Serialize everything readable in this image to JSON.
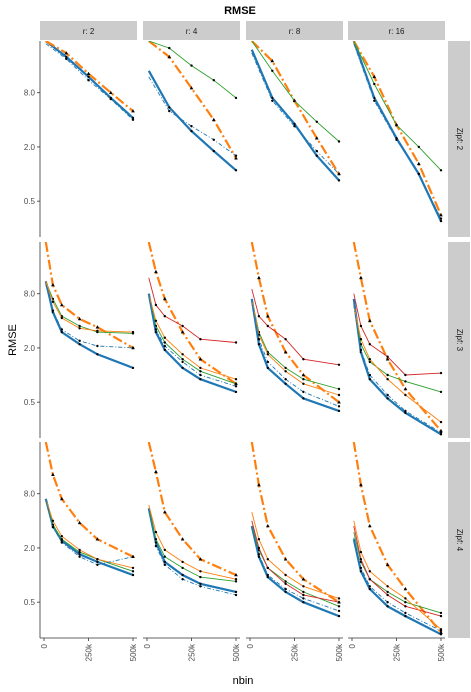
{
  "chart_data": {
    "type": "line",
    "title": "RMSE",
    "xlabel": "nbin",
    "ylabel": "RMSE",
    "y_scale": "log2",
    "ylim": [
      0.2,
      30
    ],
    "xlim": [
      0,
      500000
    ],
    "x_ticks": [
      0,
      250000,
      500000
    ],
    "x_tick_labels": [
      "0",
      "250k",
      "500k"
    ],
    "y_ticks": [
      0.5,
      2.0,
      8.0
    ],
    "y_tick_labels": [
      "0.5",
      "2.0",
      "8.0"
    ],
    "col_facet_labels": [
      "r: 2",
      "r: 4",
      "r: 8",
      "r: 16"
    ],
    "row_facet_labels": [
      "Zipf: 2",
      "Zipf: 3",
      "Zipf: 4"
    ],
    "x": [
      10000,
      50000,
      100000,
      200000,
      300000,
      500000
    ],
    "grid": false,
    "legend": "none",
    "panels": [
      {
        "r": 2,
        "zipf": 2,
        "series": [
          {
            "style": "thick-blue",
            "values": [
              30,
              20,
              12,
              7,
              4.2
            ]
          },
          {
            "style": "thick-orange-dash",
            "values": [
              30,
              22,
              13,
              8,
              5.0
            ]
          },
          {
            "style": "thin-dotted",
            "values": [
              28,
              19,
              11,
              6.8,
              4.0
            ]
          }
        ]
      },
      {
        "r": 4,
        "zipf": 2,
        "series": [
          {
            "style": "thick-blue",
            "values": [
              14,
              5.5,
              3.0,
              1.8,
              1.1
            ]
          },
          {
            "style": "thick-orange-dash",
            "values": [
              30,
              20,
              9,
              4,
              1.5
            ]
          },
          {
            "style": "thin-green",
            "values": [
              30,
              25,
              16,
              11,
              7
            ]
          },
          {
            "style": "thin-dotted",
            "values": [
              12,
              5.0,
              3.4,
              2.4,
              1.6
            ]
          }
        ]
      },
      {
        "r": 8,
        "zipf": 2,
        "series": [
          {
            "style": "thick-blue",
            "values": [
              24,
              7,
              3.6,
              1.6,
              0.85
            ]
          },
          {
            "style": "thick-orange-dash",
            "values": [
              30,
              18,
              6.5,
              2.5,
              1.0
            ]
          },
          {
            "style": "thin-green",
            "values": [
              30,
              14,
              6.5,
              3.8,
              2.3
            ]
          },
          {
            "style": "thin-dotted",
            "values": [
              22,
              6.5,
              3.4,
              1.8,
              1.0
            ]
          }
        ]
      },
      {
        "r": 16,
        "zipf": 2,
        "series": [
          {
            "style": "thick-blue",
            "values": [
              30,
              7,
              2.5,
              1.0,
              0.3
            ]
          },
          {
            "style": "thick-orange-dash",
            "values": [
              30,
              12,
              3.5,
              1.3,
              0.35
            ]
          },
          {
            "style": "thin-green",
            "values": [
              30,
              10,
              3.5,
              2.0,
              1.1
            ]
          },
          {
            "style": "thin-dotted",
            "values": [
              28,
              6.5,
              2.4,
              1.0,
              0.32
            ]
          }
        ]
      },
      {
        "r": 2,
        "zipf": 3,
        "series": [
          {
            "style": "thick-blue",
            "values": [
              11,
              5.0,
              3.0,
              2.2,
              1.7,
              1.2
            ]
          },
          {
            "style": "thick-orange-dash",
            "values": [
              30,
              10,
              6.0,
              4.2,
              3.4,
              2.0
            ]
          },
          {
            "style": "thin-green",
            "values": [
              11,
              7.0,
              4.5,
              3.5,
              3.0,
              2.9
            ]
          },
          {
            "style": "thin-orange",
            "values": [
              11,
              6.5,
              4.3,
              3.3,
              3.1,
              3.0
            ]
          },
          {
            "style": "thin-dotted",
            "values": [
              10,
              5.2,
              3.2,
              2.4,
              2.1,
              2.0
            ]
          }
        ]
      },
      {
        "r": 4,
        "zipf": 3,
        "series": [
          {
            "style": "thick-blue",
            "values": [
              8,
              3.0,
              1.9,
              1.2,
              0.9,
              0.65
            ]
          },
          {
            "style": "thick-orange-dash",
            "values": [
              30,
              14,
              7,
              3,
              1.5,
              0.8
            ]
          },
          {
            "style": "thin-green",
            "values": [
              8,
              3.5,
              2.3,
              1.5,
              1.1,
              0.8
            ]
          },
          {
            "style": "thin-red",
            "values": [
              12,
              6,
              4.5,
              3.5,
              2.5,
              2.3
            ]
          },
          {
            "style": "thin-orange",
            "values": [
              8,
              4.0,
              2.6,
              1.7,
              1.2,
              0.9
            ]
          },
          {
            "style": "thin-dotted",
            "values": [
              8,
              3.2,
              2.1,
              1.4,
              1.0,
              0.75
            ]
          }
        ]
      },
      {
        "r": 8,
        "zipf": 3,
        "series": [
          {
            "style": "thick-blue",
            "values": [
              7,
              2.2,
              1.2,
              0.8,
              0.55,
              0.4
            ]
          },
          {
            "style": "thick-orange-dash",
            "values": [
              30,
              12,
              4.5,
              1.8,
              1.0,
              0.5
            ]
          },
          {
            "style": "thin-green",
            "values": [
              7,
              3.0,
              1.8,
              1.2,
              0.9,
              0.7
            ]
          },
          {
            "style": "thin-red",
            "values": [
              9,
              4.5,
              3.5,
              2.5,
              1.5,
              1.3
            ]
          },
          {
            "style": "thin-orange",
            "values": [
              7,
              2.8,
              1.7,
              1.1,
              0.8,
              0.6
            ]
          },
          {
            "style": "thin-dotted",
            "values": [
              7,
              2.5,
              1.4,
              0.9,
              0.65,
              0.45
            ]
          }
        ]
      },
      {
        "r": 16,
        "zipf": 3,
        "series": [
          {
            "style": "thick-blue",
            "values": [
              7,
              1.8,
              0.9,
              0.55,
              0.38,
              0.22
            ]
          },
          {
            "style": "thick-orange-dash",
            "values": [
              30,
              12,
              4,
              1.5,
              0.7,
              0.24
            ]
          },
          {
            "style": "thin-green",
            "values": [
              6,
              2.2,
              1.4,
              1.0,
              0.85,
              0.65
            ]
          },
          {
            "style": "thin-red",
            "values": [
              8,
              3.5,
              2.2,
              1.6,
              1.0,
              1.05
            ]
          },
          {
            "style": "thin-orange",
            "values": [
              6,
              2.5,
              1.5,
              0.9,
              0.6,
              0.3
            ]
          },
          {
            "style": "thin-dotted",
            "values": [
              6,
              1.9,
              1.0,
              0.6,
              0.4,
              0.23
            ]
          }
        ]
      },
      {
        "r": 2,
        "zipf": 4,
        "series": [
          {
            "style": "thick-blue",
            "values": [
              7,
              3.5,
              2.4,
              1.7,
              1.4,
              1.0
            ]
          },
          {
            "style": "thick-orange-dash",
            "values": [
              30,
              13,
              7,
              3.8,
              2.5,
              1.6
            ]
          },
          {
            "style": "thin-green",
            "values": [
              7,
              3.6,
              2.5,
              1.8,
              1.5,
              1.1
            ]
          },
          {
            "style": "thin-orange",
            "values": [
              7,
              4.0,
              2.7,
              1.9,
              1.5,
              1.2
            ]
          },
          {
            "style": "thin-dotted",
            "values": [
              7,
              3.4,
              2.3,
              1.6,
              1.3,
              1.6
            ]
          }
        ]
      },
      {
        "r": 4,
        "zipf": 4,
        "series": [
          {
            "style": "thick-blue",
            "values": [
              5.5,
              2.3,
              1.4,
              1.0,
              0.8,
              0.65
            ]
          },
          {
            "style": "thick-orange-dash",
            "values": [
              30,
              14,
              5,
              2.5,
              1.5,
              1.0
            ]
          },
          {
            "style": "thin-green",
            "values": [
              5.5,
              2.5,
              1.6,
              1.2,
              0.95,
              0.85
            ]
          },
          {
            "style": "thin-orange",
            "values": [
              6,
              3.0,
              1.9,
              1.4,
              1.1,
              0.9
            ]
          },
          {
            "style": "thin-dotted",
            "values": [
              5.5,
              2.1,
              1.3,
              0.9,
              0.75,
              0.6
            ]
          }
        ]
      },
      {
        "r": 8,
        "zipf": 4,
        "series": [
          {
            "style": "thick-blue",
            "values": [
              3.5,
              1.6,
              0.95,
              0.65,
              0.5,
              0.35
            ]
          },
          {
            "style": "thick-orange-dash",
            "values": [
              30,
              10,
              3.5,
              1.5,
              0.9,
              0.5
            ]
          },
          {
            "style": "thin-green",
            "values": [
              3.5,
              1.9,
              1.2,
              0.85,
              0.65,
              0.45
            ]
          },
          {
            "style": "thin-red",
            "values": [
              4,
              2.0,
              1.2,
              0.8,
              0.6,
              0.5
            ]
          },
          {
            "style": "thin-orange",
            "values": [
              5,
              2.5,
              1.5,
              1.0,
              0.75,
              0.55
            ]
          },
          {
            "style": "thin-dotted",
            "values": [
              3.5,
              1.7,
              1.0,
              0.7,
              0.55,
              0.4
            ]
          }
        ]
      },
      {
        "r": 16,
        "zipf": 4,
        "series": [
          {
            "style": "thick-blue",
            "values": [
              2.5,
              1.1,
              0.7,
              0.45,
              0.35,
              0.22
            ]
          },
          {
            "style": "thick-orange-dash",
            "values": [
              30,
              10,
              3.5,
              1.3,
              0.7,
              0.23
            ]
          },
          {
            "style": "thin-green",
            "values": [
              3.0,
              1.4,
              0.9,
              0.65,
              0.5,
              0.38
            ]
          },
          {
            "style": "thin-red",
            "values": [
              3.5,
              1.5,
              0.9,
              0.6,
              0.45,
              0.35
            ]
          },
          {
            "style": "thin-orange",
            "values": [
              4.0,
              1.8,
              1.1,
              0.75,
              0.55,
              0.25
            ]
          },
          {
            "style": "thin-dotted",
            "values": [
              2.6,
              1.2,
              0.75,
              0.5,
              0.38,
              0.24
            ]
          }
        ]
      }
    ],
    "styles": {
      "thick-blue": {
        "color": "#1f77b4",
        "dash": "none",
        "weight": "thick"
      },
      "thick-orange-dash": {
        "color": "#ff7f0e",
        "dash": "long-dash-dot",
        "weight": "thick"
      },
      "thin-green": {
        "color": "#2ca02c",
        "dash": "none",
        "weight": "thin"
      },
      "thin-red": {
        "color": "#d62728",
        "dash": "none",
        "weight": "thin"
      },
      "thin-orange": {
        "color": "#ff7f0e",
        "dash": "none",
        "weight": "thin"
      },
      "thin-dotted": {
        "color": "#1f77b4",
        "dash": "dot-dash",
        "weight": "thin"
      }
    },
    "strip_color": "#cccccc",
    "marker_color": "#000000"
  }
}
